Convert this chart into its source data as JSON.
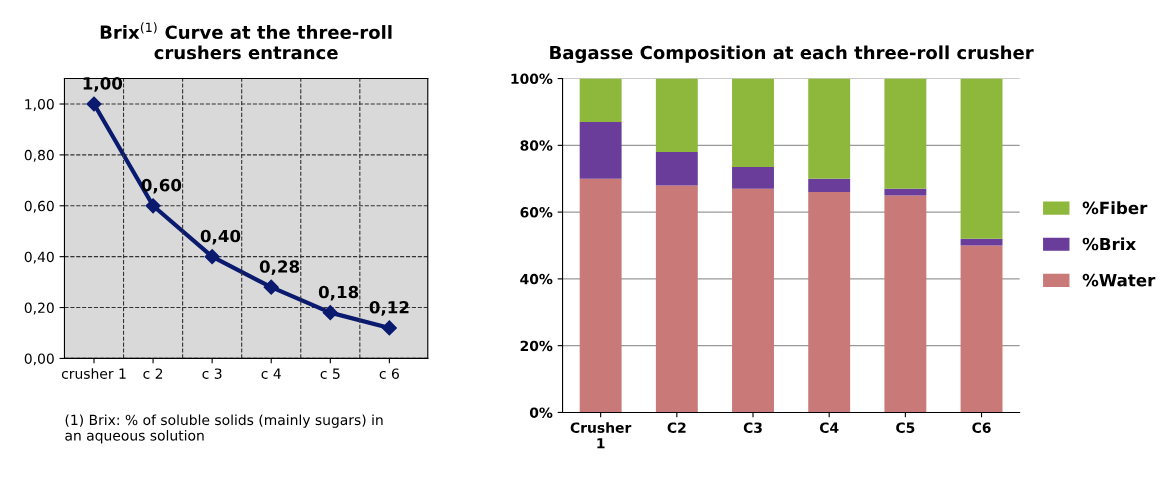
{
  "chart_data": [
    {
      "type": "line",
      "title": "Brix$^{(1)}$ Curve at the three-roll\ncrushers entrance",
      "categories": [
        "crusher 1",
        "c 2",
        "c 3",
        "c 4",
        "c 5",
        "c 6"
      ],
      "series": [
        {
          "color": "#0a1a6e",
          "values": [
            1.0,
            0.6,
            0.4,
            0.28,
            0.18,
            0.12
          ],
          "value_labels": [
            "1,00",
            "0,60",
            "0,40",
            "0,28",
            "0,18",
            "0,12"
          ]
        }
      ],
      "ylim": [
        0,
        1.1
      ],
      "yticks": [
        {
          "value": 0,
          "label": "0,00"
        },
        {
          "value": 0.2,
          "label": "0,20"
        },
        {
          "value": 0.4,
          "label": "0,40"
        },
        {
          "value": 0.6,
          "label": "0,60"
        },
        {
          "value": 0.8,
          "label": "0,80"
        },
        {
          "value": 1.0,
          "label": "1,00"
        }
      ],
      "grid": true,
      "marker": "diamond",
      "line_style": "solid",
      "annotations": [
        "(1) Brix: % of soluble solids (mainly sugars) in\nan aqueous solution"
      ]
    },
    {
      "type": "bar",
      "stacked": true,
      "title": "Bagasse Composition at each three-roll crusher",
      "categories": [
        "Crusher\n1",
        "C2",
        "C3",
        "C4",
        "C5",
        "C6"
      ],
      "series": [
        {
          "name": "%Water",
          "color": "#c97a78",
          "values": [
            70,
            68,
            67,
            66,
            65,
            50
          ]
        },
        {
          "name": "%Brix",
          "color": "#6a3d9a",
          "values": [
            17,
            10,
            6.5,
            4,
            2,
            2
          ]
        },
        {
          "name": "%Fiber",
          "color": "#8db83c",
          "values": [
            13,
            22,
            26.5,
            30,
            33,
            48
          ]
        }
      ],
      "ylim": [
        0,
        100
      ],
      "yticks": [
        {
          "value": 0,
          "label": "0%"
        },
        {
          "value": 20,
          "label": "20%"
        },
        {
          "value": 40,
          "label": "40%"
        },
        {
          "value": 60,
          "label": "60%"
        },
        {
          "value": 80,
          "label": "80%"
        },
        {
          "value": 100,
          "label": "100%"
        }
      ],
      "grid": "y",
      "legend": "right"
    }
  ]
}
